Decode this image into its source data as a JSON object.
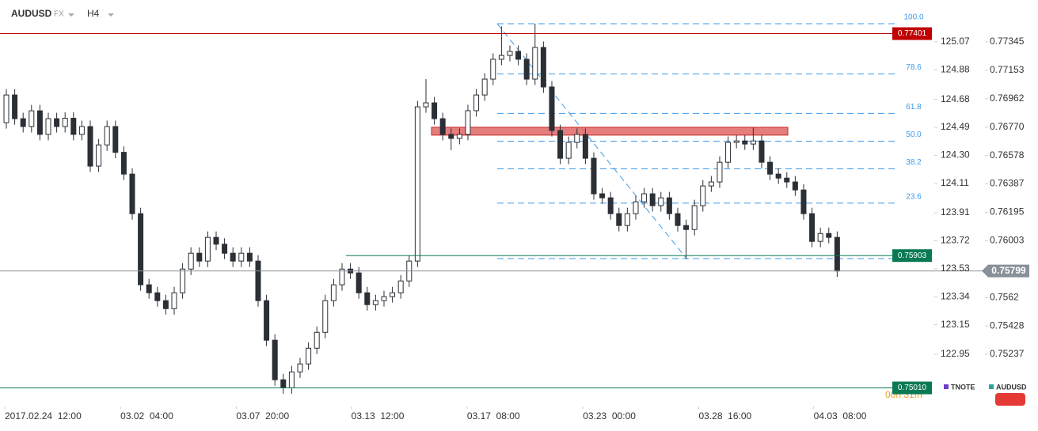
{
  "header": {
    "symbol": "AUDUSD",
    "market": "FX",
    "timeframe": "H4"
  },
  "chart_data": {
    "type": "candlestick",
    "ylim": [
      0.74906,
      0.77628
    ],
    "yticks": [
      0.77345,
      0.77153,
      0.76962,
      {
        "value": 0.7677,
        "label": "0.76770"
      },
      0.76578,
      0.76387,
      0.76195,
      0.76003,
      0.7562,
      0.75428,
      0.75237
    ],
    "y2lim": [
      122.617,
      125.354
    ],
    "y2ticks": [
      125.07,
      124.88,
      124.68,
      124.49,
      {
        "value": 124.3,
        "label": "124.30"
      },
      124.11,
      123.91,
      123.72,
      123.53,
      123.34,
      123.15,
      122.95
    ],
    "xlim": [
      -0.755,
      110.57
    ],
    "xticks": [
      {
        "value": -0.2,
        "label": "2017.02.24  12:00"
      },
      {
        "value": 13.6,
        "label": "03.02  04:00"
      },
      {
        "value": 27.4,
        "label": "03.07  20:00"
      },
      {
        "value": 41.1,
        "label": "03.13  12:00"
      },
      {
        "value": 54.9,
        "label": "03.17  08:00"
      },
      {
        "value": 68.7,
        "label": "03.23  00:00"
      },
      {
        "value": 82.5,
        "label": "03.28  16:00"
      },
      {
        "value": 96.2,
        "label": "04.03  08:00"
      }
    ],
    "up_color": "#ffffff",
    "down_color": "#2b2f36",
    "wick_color": "#2b2f36",
    "candles": [
      [
        0.768,
        0.77027,
        0.7676,
        0.76987
      ],
      [
        0.76987,
        0.77027,
        0.76787,
        0.76827
      ],
      [
        0.76827,
        0.76867,
        0.76734,
        0.76774
      ],
      [
        0.76774,
        0.7692,
        0.76734,
        0.7688
      ],
      [
        0.7688,
        0.7692,
        0.76681,
        0.76721
      ],
      [
        0.76721,
        0.76867,
        0.76681,
        0.76827
      ],
      [
        0.76827,
        0.76867,
        0.76734,
        0.76774
      ],
      [
        0.76774,
        0.7687,
        0.76734,
        0.7683
      ],
      [
        0.7683,
        0.7687,
        0.76681,
        0.76721
      ],
      [
        0.76721,
        0.76814,
        0.76681,
        0.76774
      ],
      [
        0.76774,
        0.76814,
        0.76467,
        0.76507
      ],
      [
        0.76507,
        0.7669,
        0.76467,
        0.7665
      ],
      [
        0.7665,
        0.76814,
        0.7661,
        0.76774
      ],
      [
        0.76774,
        0.76814,
        0.7656,
        0.766
      ],
      [
        0.766,
        0.7664,
        0.76413,
        0.76453
      ],
      [
        0.76453,
        0.76493,
        0.76146,
        0.76186
      ],
      [
        0.76186,
        0.76226,
        0.75666,
        0.75706
      ],
      [
        0.75706,
        0.75746,
        0.75612,
        0.75652
      ],
      [
        0.75652,
        0.75692,
        0.75559,
        0.75599
      ],
      [
        0.75599,
        0.75639,
        0.75505,
        0.75545
      ],
      [
        0.75545,
        0.75692,
        0.75505,
        0.75652
      ],
      [
        0.75652,
        0.75852,
        0.75612,
        0.75812
      ],
      [
        0.75812,
        0.75959,
        0.75772,
        0.75919
      ],
      [
        0.75919,
        0.75959,
        0.75826,
        0.75866
      ],
      [
        0.75866,
        0.76066,
        0.75826,
        0.76026
      ],
      [
        0.76026,
        0.76066,
        0.7594,
        0.7598
      ],
      [
        0.7598,
        0.7602,
        0.75879,
        0.75919
      ],
      [
        0.75919,
        0.75959,
        0.75826,
        0.75866
      ],
      [
        0.75866,
        0.75959,
        0.75826,
        0.75919
      ],
      [
        0.75919,
        0.75959,
        0.75826,
        0.75866
      ],
      [
        0.75866,
        0.75906,
        0.75559,
        0.75599
      ],
      [
        0.75599,
        0.75639,
        0.75292,
        0.75332
      ],
      [
        0.75332,
        0.75372,
        0.75025,
        0.75065
      ],
      [
        0.75065,
        0.75105,
        0.74971,
        0.75011
      ],
      [
        0.75011,
        0.75158,
        0.74971,
        0.75118
      ],
      [
        0.75118,
        0.75212,
        0.75078,
        0.75172
      ],
      [
        0.75172,
        0.75318,
        0.75132,
        0.75278
      ],
      [
        0.75278,
        0.75425,
        0.75238,
        0.75385
      ],
      [
        0.75385,
        0.75639,
        0.75345,
        0.75599
      ],
      [
        0.75599,
        0.75746,
        0.75559,
        0.75706
      ],
      [
        0.75706,
        0.75852,
        0.75666,
        0.75812
      ],
      [
        0.75812,
        0.75852,
        0.75746,
        0.75786
      ],
      [
        0.75786,
        0.75826,
        0.75612,
        0.75652
      ],
      [
        0.75652,
        0.75692,
        0.75532,
        0.75572
      ],
      [
        0.75572,
        0.75639,
        0.75532,
        0.75599
      ],
      [
        0.75599,
        0.75666,
        0.75559,
        0.75626
      ],
      [
        0.75626,
        0.75692,
        0.75586,
        0.75652
      ],
      [
        0.75652,
        0.75772,
        0.75612,
        0.75732
      ],
      [
        0.75732,
        0.75906,
        0.75692,
        0.75866
      ],
      [
        0.75866,
        0.76947,
        0.75826,
        0.76907
      ],
      [
        0.76907,
        0.77094,
        0.76867,
        0.76934
      ],
      [
        0.76934,
        0.76974,
        0.76787,
        0.76827
      ],
      [
        0.76827,
        0.76867,
        0.76681,
        0.76721
      ],
      [
        0.76721,
        0.76761,
        0.76614,
        0.76694
      ],
      [
        0.76694,
        0.76761,
        0.76654,
        0.76721
      ],
      [
        0.76721,
        0.76921,
        0.76681,
        0.76881
      ],
      [
        0.76881,
        0.77027,
        0.76841,
        0.76987
      ],
      [
        0.76987,
        0.77134,
        0.76947,
        0.77094
      ],
      [
        0.77094,
        0.77268,
        0.77054,
        0.77228
      ],
      [
        0.77228,
        0.7745,
        0.77188,
        0.77254
      ],
      [
        0.77254,
        0.77321,
        0.77214,
        0.77281
      ],
      [
        0.77281,
        0.77321,
        0.77188,
        0.77228
      ],
      [
        0.77228,
        0.77268,
        0.77054,
        0.77094
      ],
      [
        0.77094,
        0.77468,
        0.77054,
        0.77308
      ],
      [
        0.77308,
        0.77348,
        0.77001,
        0.77041
      ],
      [
        0.77041,
        0.77081,
        0.76707,
        0.76747
      ],
      [
        0.76747,
        0.76787,
        0.7652,
        0.7656
      ],
      [
        0.7656,
        0.76707,
        0.7652,
        0.76667
      ],
      [
        0.76667,
        0.76761,
        0.76627,
        0.76721
      ],
      [
        0.76721,
        0.76761,
        0.7652,
        0.7656
      ],
      [
        0.7656,
        0.766,
        0.7628,
        0.7632
      ],
      [
        0.7632,
        0.7636,
        0.76253,
        0.76293
      ],
      [
        0.76293,
        0.76333,
        0.76146,
        0.76186
      ],
      [
        0.76186,
        0.76226,
        0.76066,
        0.76106
      ],
      [
        0.76106,
        0.76226,
        0.76066,
        0.76186
      ],
      [
        0.76186,
        0.76306,
        0.76146,
        0.76266
      ],
      [
        0.76266,
        0.7636,
        0.76226,
        0.7632
      ],
      [
        0.7632,
        0.7636,
        0.762,
        0.7624
      ],
      [
        0.7624,
        0.76333,
        0.762,
        0.76293
      ],
      [
        0.76293,
        0.76333,
        0.76146,
        0.76186
      ],
      [
        0.76186,
        0.76226,
        0.76066,
        0.76106
      ],
      [
        0.76106,
        0.76146,
        0.75883,
        0.76079
      ],
      [
        0.76079,
        0.7628,
        0.76039,
        0.7624
      ],
      [
        0.7624,
        0.76413,
        0.762,
        0.76373
      ],
      [
        0.76373,
        0.7644,
        0.76333,
        0.764
      ],
      [
        0.764,
        0.76573,
        0.7636,
        0.76533
      ],
      [
        0.76533,
        0.76707,
        0.76493,
        0.76667
      ],
      [
        0.76667,
        0.76717,
        0.76627,
        0.76677
      ],
      [
        0.76677,
        0.76717,
        0.76616,
        0.76656
      ],
      [
        0.76656,
        0.76767,
        0.76616,
        0.76677
      ],
      [
        0.76677,
        0.76717,
        0.76493,
        0.76533
      ],
      [
        0.76533,
        0.76573,
        0.76413,
        0.76453
      ],
      [
        0.76453,
        0.76493,
        0.76386,
        0.76426
      ],
      [
        0.76426,
        0.76466,
        0.7636,
        0.764
      ],
      [
        0.764,
        0.7644,
        0.76306,
        0.76346
      ],
      [
        0.76346,
        0.76386,
        0.76146,
        0.76186
      ],
      [
        0.76186,
        0.76226,
        0.75959,
        0.75999
      ],
      [
        0.75999,
        0.76092,
        0.75959,
        0.76052
      ],
      [
        0.76052,
        0.76092,
        0.75986,
        0.76026
      ],
      [
        0.76026,
        0.76066,
        0.75759,
        0.75799
      ]
    ],
    "levels": [
      {
        "price": 0.77401,
        "color": "#c00000"
      },
      {
        "price": 0.75903,
        "color": "#0a7a55"
      },
      {
        "price": 0.7501,
        "label": "0.75010",
        "color": "#0a7a55"
      }
    ],
    "current": {
      "price": 0.75799,
      "color": "#8a9099",
      "countdown": "00h 31m"
    },
    "zone": {
      "low": 0.76716,
      "high": 0.76769,
      "color": "#e06666"
    },
    "fib": {
      "high": 0.77468,
      "low": 0.75883,
      "color": "#3d9be9",
      "levels": [
        {
          "value": 100,
          "label": "100.0"
        },
        78.6,
        61.8,
        {
          "value": 50,
          "label": "50.0"
        },
        38.2,
        23.6
      ]
    },
    "legend": [
      {
        "name": "TNOTE",
        "color": "#6a3fc8"
      },
      {
        "name": "AUDUSD",
        "color": "#26a69a"
      }
    ]
  }
}
